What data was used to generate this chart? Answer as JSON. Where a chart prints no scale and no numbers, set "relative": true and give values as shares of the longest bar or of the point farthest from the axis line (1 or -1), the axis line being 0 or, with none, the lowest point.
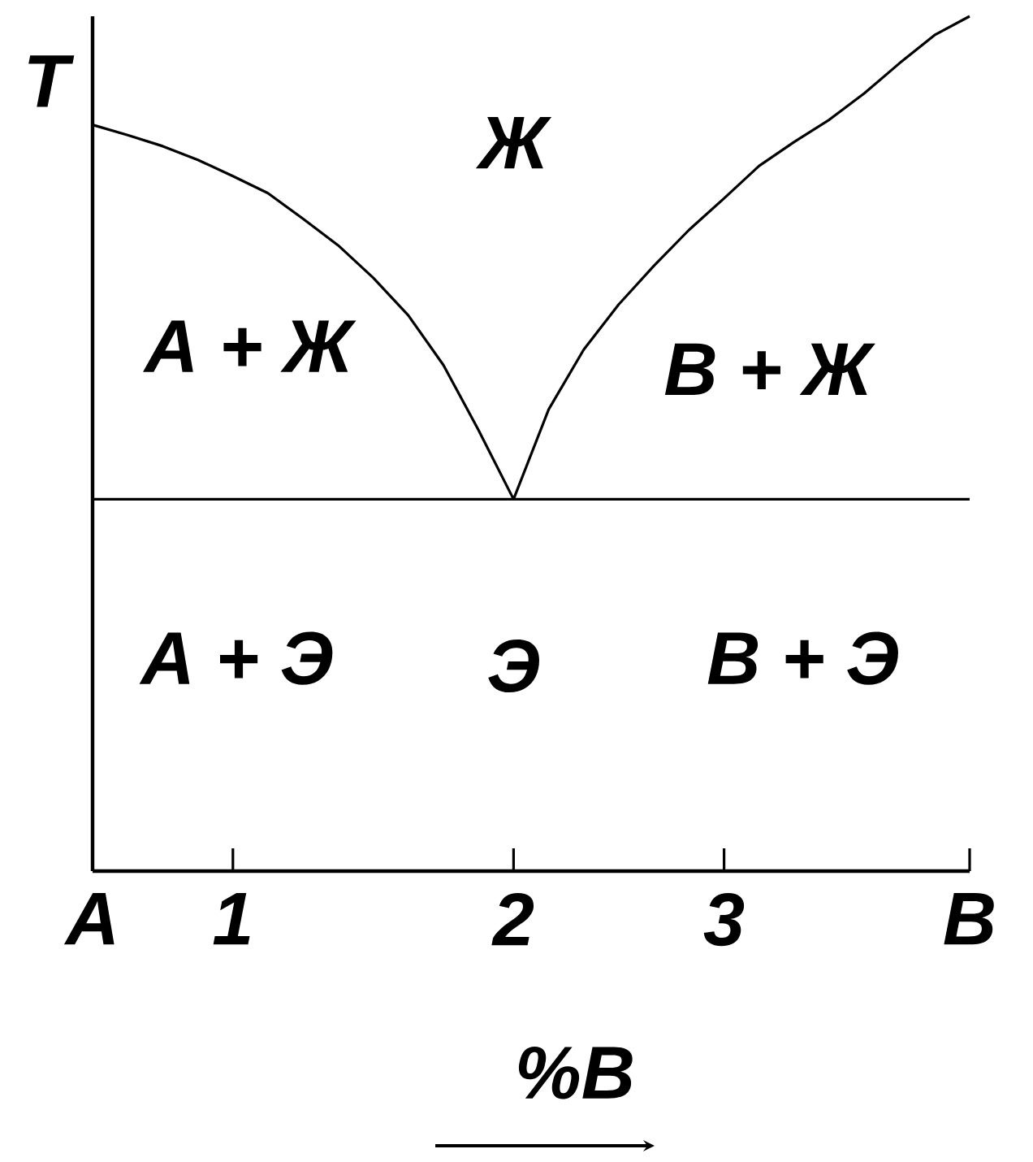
{
  "chart_data": {
    "type": "line",
    "relative": true,
    "ylabel": "T",
    "xlabel": "%В",
    "categories": [
      "А",
      null,
      null,
      null,
      "1",
      null,
      null,
      null,
      null,
      null,
      null,
      null,
      "2",
      null,
      null,
      null,
      null,
      null,
      "3",
      null,
      null,
      null,
      null,
      null,
      null,
      "В"
    ],
    "series": [
      {
        "color": "#000000",
        "values": [
          0.873,
          0.861,
          0.848,
          0.832,
          0.813,
          0.793,
          0.763,
          0.732,
          0.694,
          0.65,
          0.592,
          0.516,
          0.435,
          null,
          null,
          null,
          null,
          null,
          null,
          null,
          null,
          null,
          null,
          null,
          null,
          null
        ]
      },
      {
        "color": "#000000",
        "values": [
          null,
          null,
          null,
          null,
          null,
          null,
          null,
          null,
          null,
          null,
          null,
          null,
          0.435,
          0.54,
          0.61,
          0.663,
          0.708,
          0.75,
          0.787,
          0.825,
          0.853,
          0.879,
          0.91,
          0.945,
          0.978,
          1
        ]
      },
      {
        "color": "#000000",
        "values": [
          0.435,
          0.435,
          0.435,
          0.435,
          0.435,
          0.435,
          0.435,
          0.435,
          0.435,
          0.435,
          0.435,
          0.435,
          0.435,
          0.435,
          0.435,
          0.435,
          0.435,
          0.435,
          0.435,
          0.435,
          0.435,
          0.435,
          0.435,
          0.435,
          0.435,
          0.435
        ]
      }
    ],
    "annotations": [
      "Ж",
      "А + Ж",
      "В + Ж",
      "А + Э",
      "Э",
      "В + Э"
    ],
    "marker": "none",
    "line_style": "solid"
  }
}
